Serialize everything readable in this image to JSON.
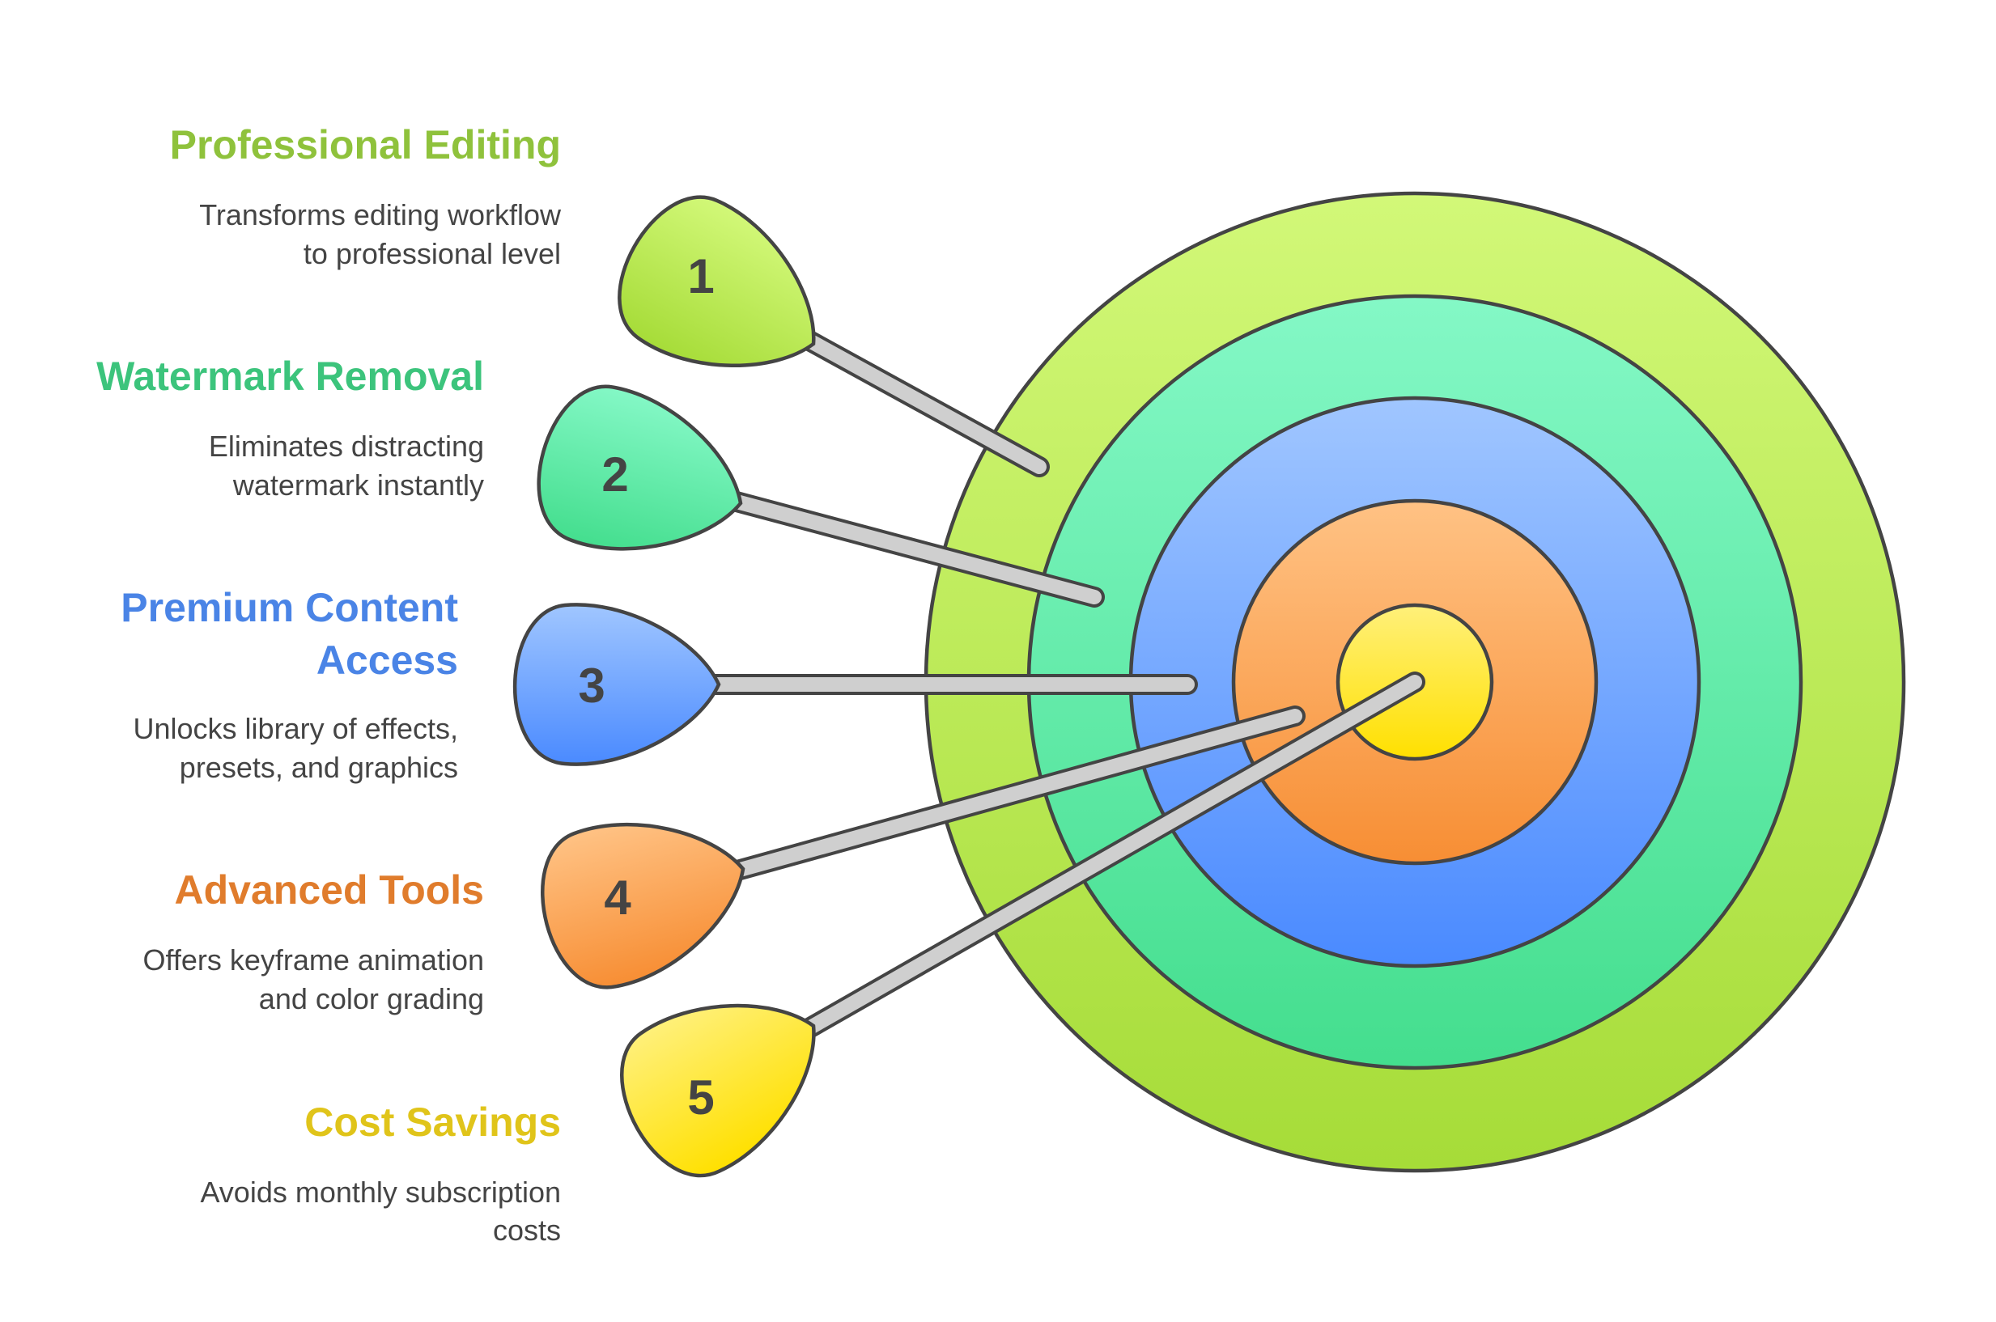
{
  "colors": {
    "outline": "#444444",
    "stick": "#cfcfcf",
    "item1": "#8fc23c",
    "item2": "#3cc47c",
    "item3": "#4a84e6",
    "item4": "#e07c2c",
    "item5": "#e0c41a"
  },
  "target": {
    "rings": [
      "green-outer",
      "teal",
      "blue",
      "orange",
      "yellow-bullseye"
    ]
  },
  "items": [
    {
      "number": "1",
      "title": "Professional Editing",
      "desc_lines": [
        "Transforms editing workflow",
        "to professional level"
      ]
    },
    {
      "number": "2",
      "title": "Watermark Removal",
      "desc_lines": [
        "Eliminates distracting",
        "watermark instantly"
      ]
    },
    {
      "number": "3",
      "title_lines": [
        "Premium Content",
        "Access"
      ],
      "desc_lines": [
        "Unlocks library of effects,",
        "presets, and graphics"
      ]
    },
    {
      "number": "4",
      "title": "Advanced Tools",
      "desc_lines": [
        "Offers keyframe animation",
        "and color grading"
      ]
    },
    {
      "number": "5",
      "title": "Cost Savings",
      "desc_lines": [
        "Avoids monthly subscription",
        "costs"
      ]
    }
  ]
}
